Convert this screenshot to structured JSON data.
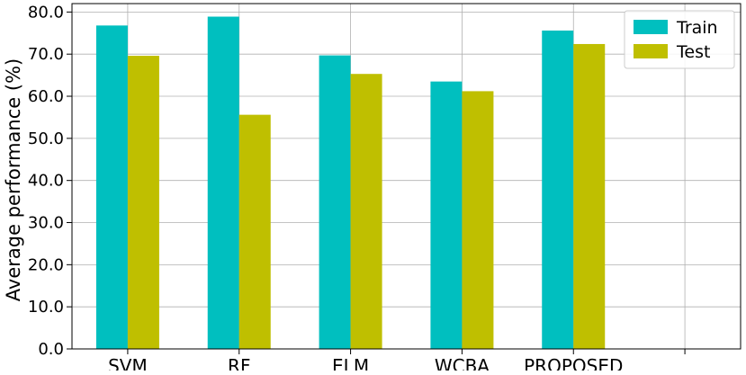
{
  "chart_data": {
    "type": "bar",
    "title": "",
    "xlabel": "",
    "ylabel": "Average performance (%)",
    "categories": [
      "SVM",
      "RF",
      "ELM",
      "WCBA",
      "PROPOSED"
    ],
    "series": [
      {
        "name": "Train",
        "color": "#00bfbf",
        "values": [
          76.8,
          78.9,
          69.7,
          63.5,
          75.6
        ]
      },
      {
        "name": "Test",
        "color": "#bfbf00",
        "values": [
          69.6,
          55.6,
          65.3,
          61.2,
          72.4
        ]
      }
    ],
    "ylim": [
      0,
      82
    ],
    "yticks": [
      "0.0",
      "10.0",
      "20.0",
      "30.0",
      "40.0",
      "50.0",
      "60.0",
      "70.0",
      "80.0"
    ],
    "grid": true,
    "legend_position": "top-right"
  }
}
